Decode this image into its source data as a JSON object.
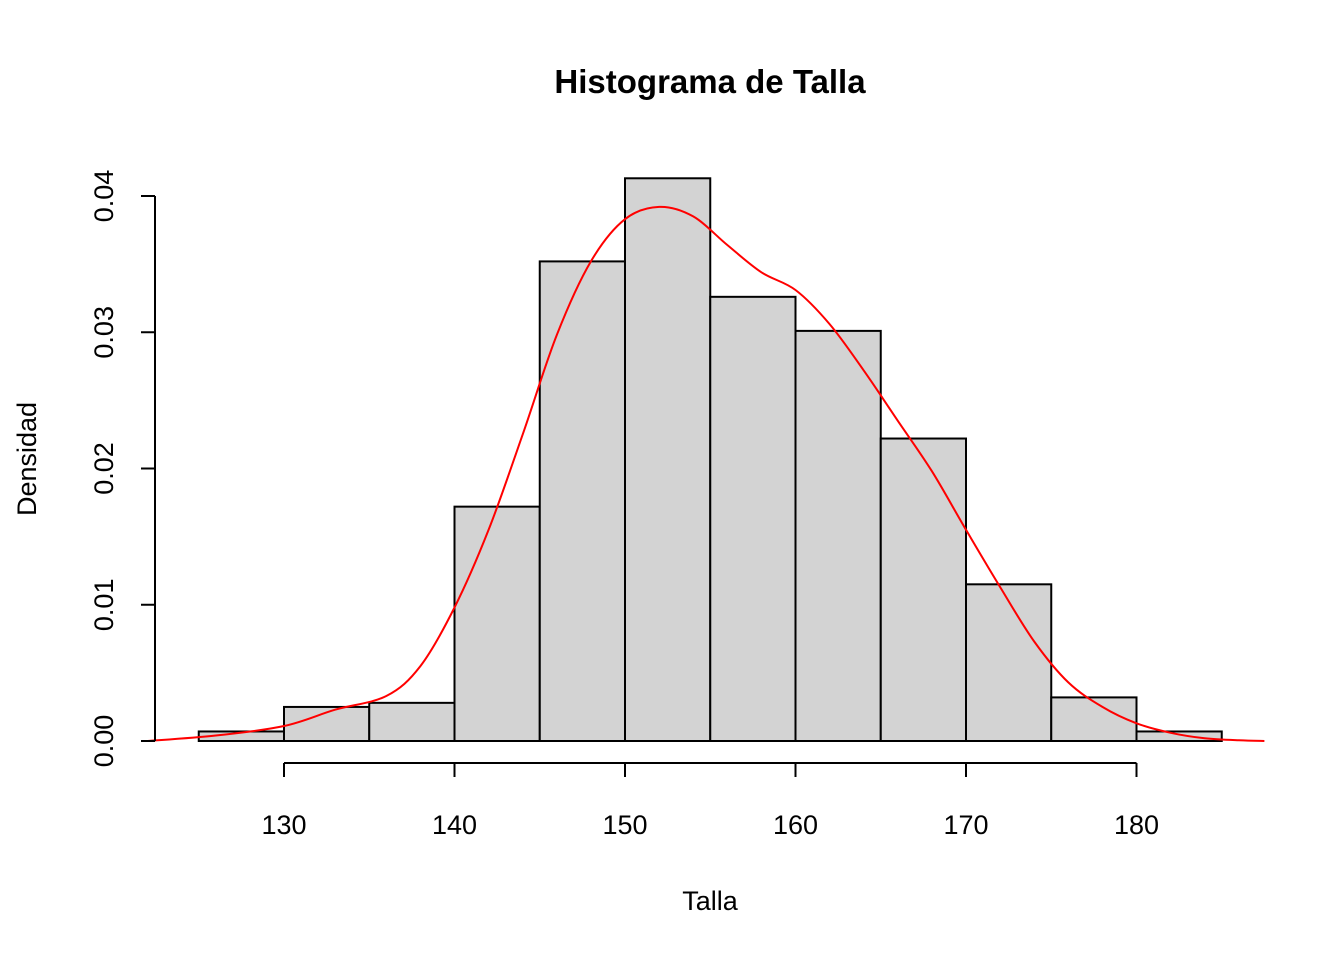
{
  "chart_data": {
    "type": "bar",
    "title": "Histograma de Talla",
    "xlabel": "Talla",
    "ylabel": "Densidad",
    "xlim": [
      125,
      185
    ],
    "ylim": [
      0,
      0.04
    ],
    "x_ticks": [
      130,
      140,
      150,
      160,
      170,
      180
    ],
    "x_tick_labels": [
      "130",
      "140",
      "150",
      "160",
      "170",
      "180"
    ],
    "y_ticks": [
      0,
      0.01,
      0.02,
      0.03,
      0.04
    ],
    "y_tick_labels": [
      "0.00",
      "0.01",
      "0.02",
      "0.03",
      "0.04"
    ],
    "bins": [
      {
        "from": 125,
        "to": 130,
        "density": 0.0007
      },
      {
        "from": 130,
        "to": 135,
        "density": 0.0025
      },
      {
        "from": 135,
        "to": 140,
        "density": 0.0028
      },
      {
        "from": 140,
        "to": 145,
        "density": 0.0172
      },
      {
        "from": 145,
        "to": 150,
        "density": 0.0352
      },
      {
        "from": 150,
        "to": 155,
        "density": 0.0413
      },
      {
        "from": 155,
        "to": 160,
        "density": 0.0326
      },
      {
        "from": 160,
        "to": 165,
        "density": 0.0301
      },
      {
        "from": 165,
        "to": 170,
        "density": 0.0222
      },
      {
        "from": 170,
        "to": 175,
        "density": 0.0115
      },
      {
        "from": 175,
        "to": 180,
        "density": 0.0032
      },
      {
        "from": 180,
        "to": 185,
        "density": 0.0007
      }
    ],
    "density_curve": {
      "x": [
        122,
        126,
        130,
        133,
        136,
        138,
        140,
        142,
        144,
        146,
        148,
        150,
        152,
        154,
        156,
        158,
        160,
        162,
        164,
        166,
        168,
        170,
        172,
        174,
        176,
        178,
        180,
        182,
        184,
        186,
        187.5
      ],
      "y": [
        0.0,
        0.0004,
        0.0011,
        0.0023,
        0.0033,
        0.0055,
        0.0098,
        0.0155,
        0.0225,
        0.0298,
        0.0352,
        0.0383,
        0.0392,
        0.0385,
        0.0364,
        0.0344,
        0.0331,
        0.0306,
        0.0272,
        0.0235,
        0.0198,
        0.0155,
        0.0113,
        0.0073,
        0.0043,
        0.0025,
        0.0013,
        0.0006,
        0.0002,
        5e-05,
        0.0
      ]
    },
    "colors": {
      "bar_fill": "#d3d3d3",
      "bar_border": "#000000",
      "density_line": "#ff0000"
    },
    "grid": false
  }
}
